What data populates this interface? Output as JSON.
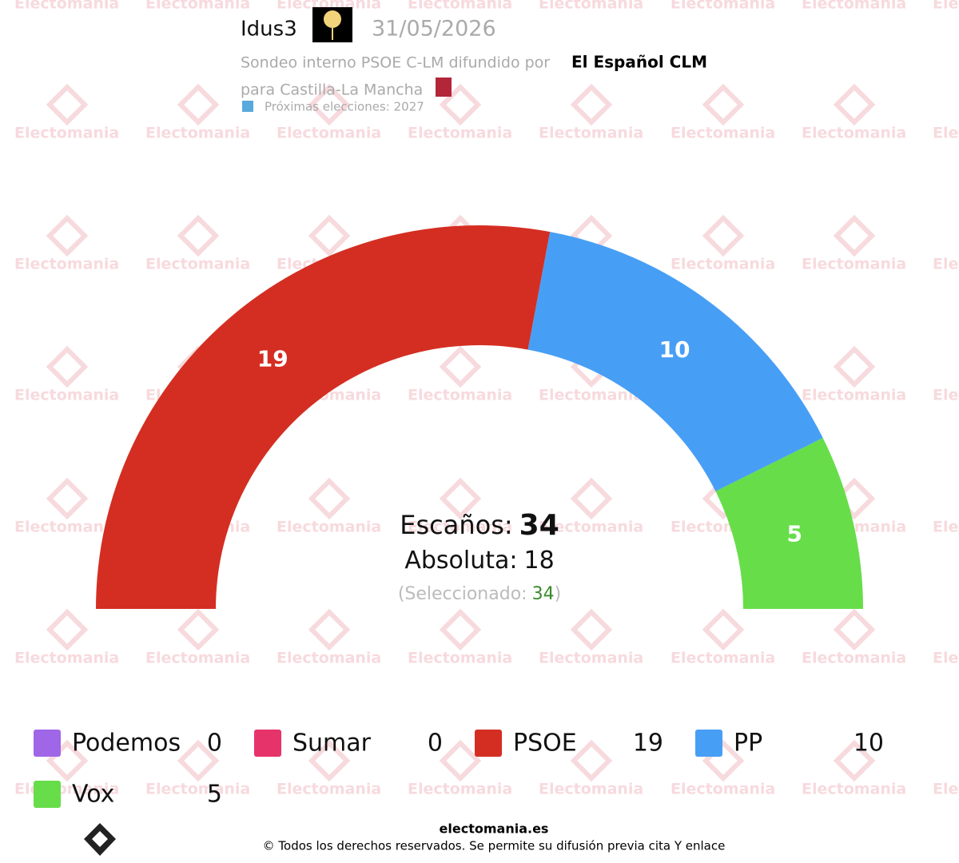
{
  "header": {
    "pollster": "Idus3",
    "date": "31/05/2026",
    "description": "Sondeo interno PSOE C-LM difundido por",
    "source": "El Español CLM",
    "region": "para Castilla-La Mancha",
    "next_elections": "Próximas elecciones: 2027"
  },
  "watermark": "Electomania",
  "chart_data": {
    "type": "parliament",
    "categories": [
      "Podemos",
      "Sumar",
      "PSOE",
      "PP",
      "Vox"
    ],
    "values": [
      0,
      0,
      19,
      10,
      5
    ],
    "colors": [
      "#a066e8",
      "#e6336a",
      "#d42e22",
      "#479ef5",
      "#67dd4a"
    ],
    "total_label": "Escaños:",
    "total": 34,
    "majority_label": "Absoluta:",
    "majority": 18,
    "selected_label": "(Seleccionado:",
    "selected": 34,
    "selected_close": ")"
  },
  "footer": {
    "site": "electomania.es",
    "copyright": "© Todos los derechos reservados. Se permite su difusión previa cita Y enlace"
  }
}
